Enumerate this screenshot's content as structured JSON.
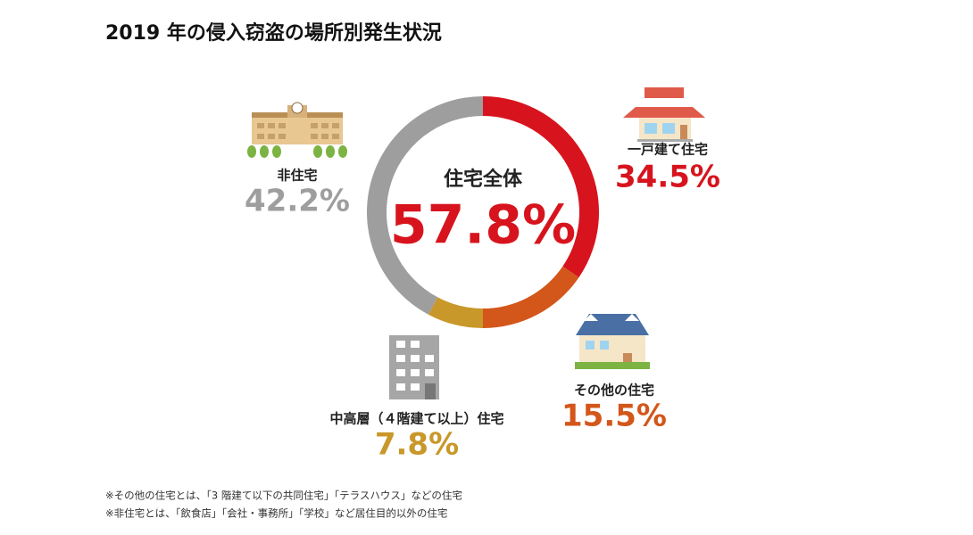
{
  "chart_data": {
    "type": "donut",
    "title": "2019 年の侵入窃盗の場所別発生状況",
    "center_label": "住宅全体",
    "center_value": 57.8,
    "center_value_label": "57.8%",
    "center_color": "#d7141e",
    "categories": [
      "一戸建て住宅",
      "その他の住宅",
      "中高層（４階建て以上）住宅",
      "非住宅"
    ],
    "values": [
      34.5,
      15.5,
      7.8,
      42.2
    ],
    "value_labels": [
      "34.5%",
      "15.5%",
      "7.8%",
      "42.2%"
    ],
    "colors": [
      "#d7141e",
      "#d3561a",
      "#c9982a",
      "#9e9e9e"
    ],
    "notes": [
      "※その他の住宅とは、「3 階建て以下の共同住宅」「テラスハウス」などの住宅",
      "※非住宅とは、「飲食店」「会社・事務所」「学校」など居住目的以外の住宅"
    ]
  }
}
